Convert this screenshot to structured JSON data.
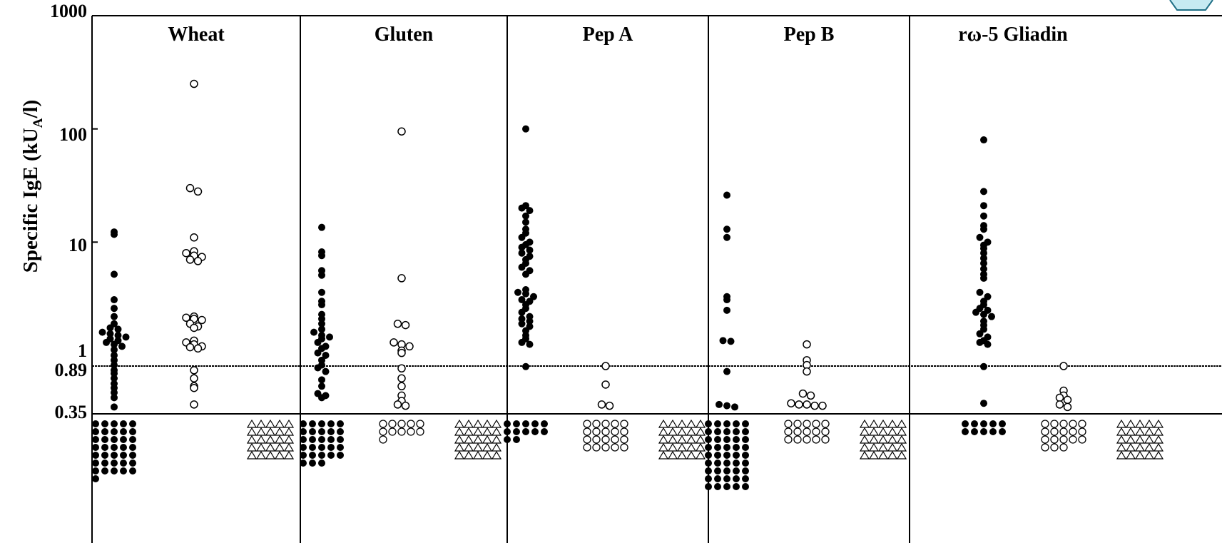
{
  "chart_data": {
    "type": "scatter",
    "ylabel_prefix": "Specific IgE (kU",
    "ylabel_sub": "A",
    "ylabel_suffix": "/l)",
    "y_scale": "log",
    "ylim": [
      0.35,
      1000
    ],
    "y_tick_labels": [
      "1000",
      "100",
      "10",
      "1",
      "0.89",
      "0.35"
    ],
    "threshold_value": 0.89,
    "panels": [
      {
        "title": "Wheat",
        "groups": [
          {
            "marker": "filled",
            "values": [
              12.3,
              11.7,
              5.2,
              3.1,
              2.6,
              2.2,
              1.9,
              1.75,
              1.7,
              1.6,
              1.55,
              1.5,
              1.45,
              1.4,
              1.35,
              1.3,
              1.25,
              1.2,
              1.12,
              1.0,
              0.95,
              0.9,
              0.82,
              0.77,
              0.7,
              0.63,
              0.58,
              0.53,
              0.48,
              0.4
            ],
            "below_count": 36
          },
          {
            "marker": "open",
            "values": [
              250,
              30,
              28,
              11,
              8.3,
              8.0,
              7.6,
              7.4,
              7.0,
              6.8,
              2.2,
              2.15,
              2.1,
              2.05,
              1.9,
              1.8,
              1.75,
              1.35,
              1.3,
              1.25,
              1.2,
              1.18,
              1.15,
              0.82,
              0.7,
              0.6,
              0.58,
              0.42
            ],
            "below_count": 0
          },
          {
            "marker": "triangle",
            "values": [],
            "below_count": 25
          }
        ]
      },
      {
        "title": "Gluten",
        "groups": [
          {
            "marker": "filled",
            "values": [
              13.5,
              8.2,
              7.6,
              5.6,
              5.1,
              3.6,
              3.0,
              2.8,
              2.3,
              2.1,
              1.9,
              1.7,
              1.6,
              1.5,
              1.45,
              1.4,
              1.3,
              1.2,
              1.15,
              1.05,
              1.0,
              0.95,
              0.9,
              0.86,
              0.8,
              0.68,
              0.6,
              0.52,
              0.5,
              0.48
            ],
            "below_count": 28
          },
          {
            "marker": "open",
            "values": [
              95,
              4.8,
              1.9,
              1.85,
              1.3,
              1.25,
              1.2,
              1.1,
              1.05,
              0.85,
              0.7,
              0.6,
              0.5,
              0.45,
              0.42,
              0.41
            ],
            "below_count": 11
          },
          {
            "marker": "triangle",
            "values": [],
            "below_count": 25
          }
        ]
      },
      {
        "title": "Pep A",
        "groups": [
          {
            "marker": "filled",
            "values": [
              100,
              21,
              20,
              19,
              17,
              15,
              13,
              12,
              11,
              10,
              9.5,
              9,
              8.5,
              8,
              7.5,
              7,
              6.5,
              6,
              5.6,
              5.2,
              3.8,
              3.6,
              3.5,
              3.3,
              3.1,
              3.0,
              2.8,
              2.6,
              2.4,
              2.2,
              2.1,
              2.0,
              1.9,
              1.8,
              1.65,
              1.5,
              1.4,
              1.3,
              1.25,
              0.88
            ],
            "below_count": 12
          },
          {
            "marker": "open",
            "values": [
              0.89,
              0.62,
              0.42,
              0.41
            ],
            "below_count": 20
          },
          {
            "marker": "triangle",
            "values": [],
            "below_count": 25
          }
        ]
      },
      {
        "title": "Pep B",
        "groups": [
          {
            "marker": "filled",
            "values": [
              26,
              13,
              11,
              3.3,
              3.1,
              2.5,
              1.35,
              1.33,
              0.8,
              0.42,
              0.41,
              0.4
            ],
            "below_count": 45
          },
          {
            "marker": "open",
            "values": [
              1.25,
              0.95,
              0.9,
              0.8,
              0.52,
              0.5,
              0.43,
              0.42,
              0.42,
              0.41,
              0.41
            ],
            "below_count": 15
          },
          {
            "marker": "triangle",
            "values": [],
            "below_count": 25
          }
        ]
      },
      {
        "title": "rω-5 Gliadin",
        "groups": [
          {
            "marker": "filled",
            "values": [
              80,
              28,
              21,
              17,
              14,
              13,
              11,
              10,
              9.4,
              8.8,
              8.0,
              7.2,
              6.5,
              5.8,
              5.2,
              4.8,
              3.6,
              3.3,
              3.0,
              2.8,
              2.6,
              2.5,
              2.4,
              2.3,
              2.2,
              2.0,
              1.85,
              1.7,
              1.55,
              1.45,
              1.35,
              1.3,
              1.25,
              0.88,
              0.43
            ],
            "below_count": 10
          },
          {
            "marker": "open",
            "values": [
              0.89,
              0.55,
              0.5,
              0.48,
              0.46,
              0.42,
              0.4
            ],
            "below_count": 18
          },
          {
            "marker": "triangle",
            "values": [],
            "below_count": 25
          }
        ]
      }
    ]
  }
}
